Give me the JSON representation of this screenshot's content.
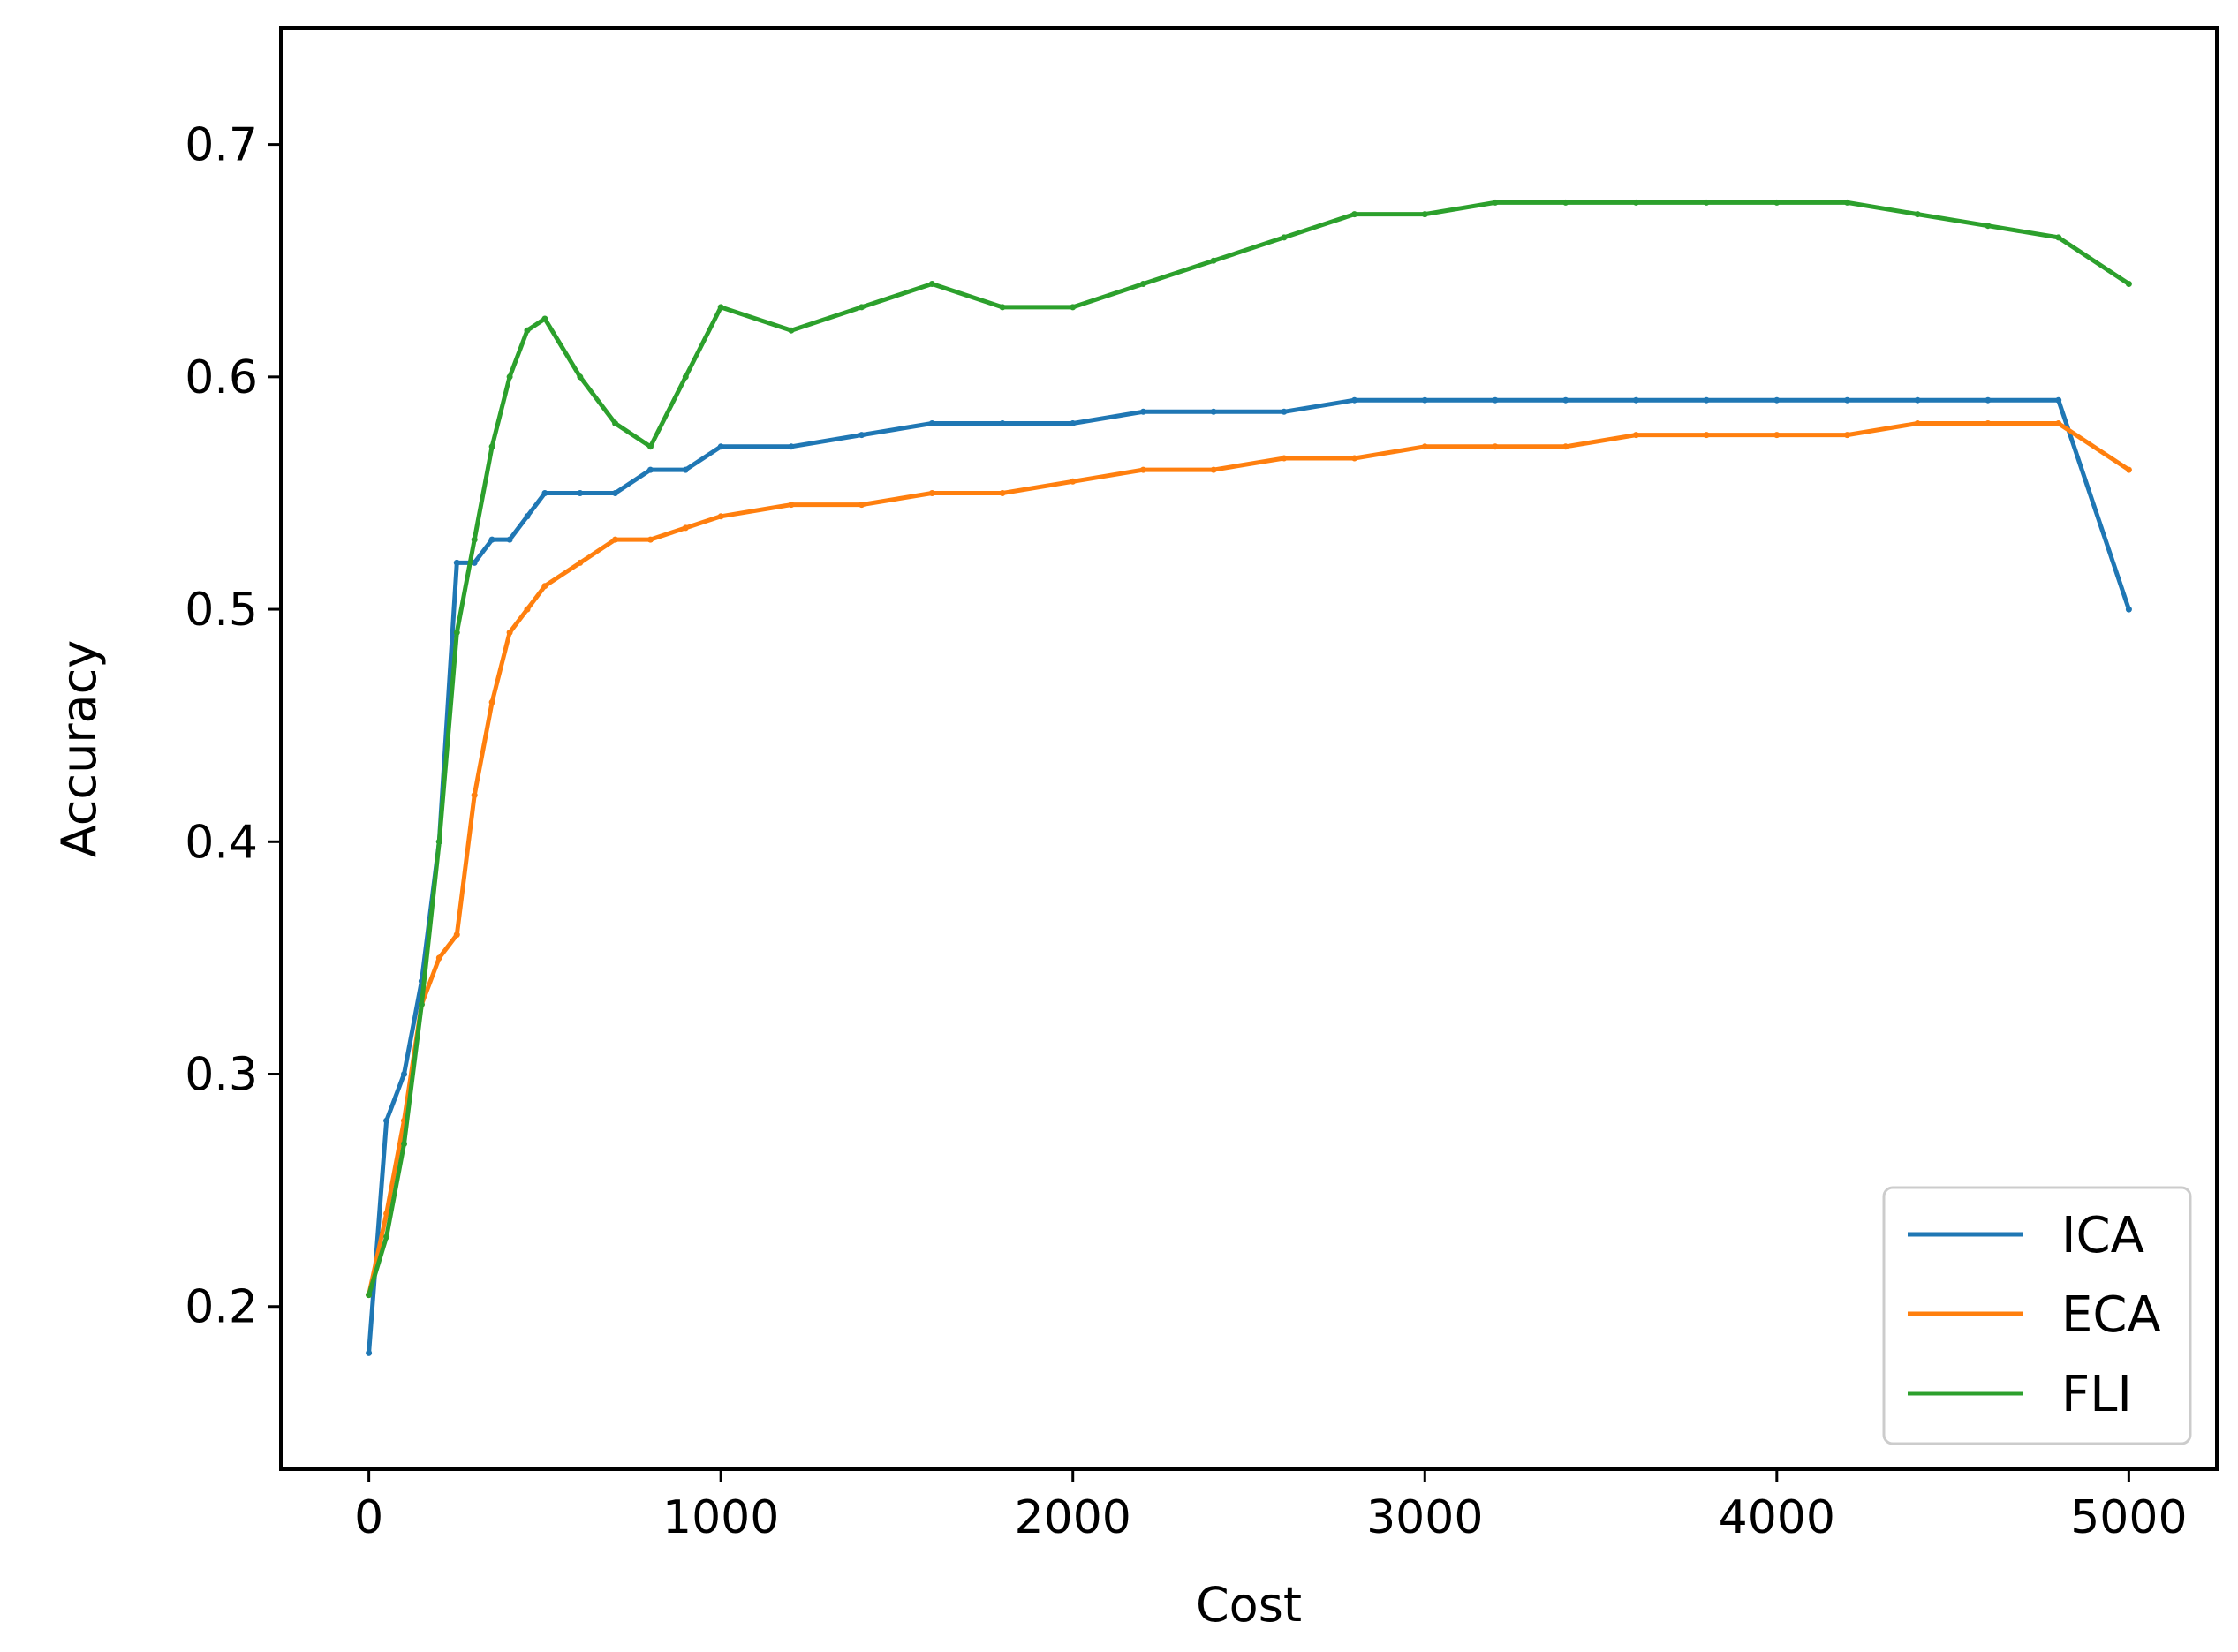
{
  "chart_data": {
    "type": "line",
    "title": "",
    "xlabel": "Cost",
    "ylabel": "Accuracy",
    "xlim": [
      -250,
      5250
    ],
    "ylim": [
      0.13,
      0.75
    ],
    "x_ticks": [
      0,
      1000,
      2000,
      3000,
      4000,
      5000
    ],
    "x_tick_labels": [
      "0",
      "1000",
      "2000",
      "3000",
      "4000",
      "5000"
    ],
    "y_ticks": [
      0.2,
      0.3,
      0.4,
      0.5,
      0.6,
      0.7
    ],
    "y_tick_labels": [
      "0.2",
      "0.3",
      "0.4",
      "0.5",
      "0.6",
      "0.7"
    ],
    "grid": false,
    "legend_position": "lower-right",
    "colors": {
      "ICA": "#1f77b4",
      "ECA": "#ff7f0e",
      "FLI": "#2ca02c"
    },
    "x": [
      0,
      50,
      100,
      150,
      200,
      250,
      300,
      350,
      400,
      450,
      500,
      600,
      700,
      800,
      900,
      1000,
      1200,
      1400,
      1600,
      1800,
      2000,
      2200,
      2400,
      2600,
      2800,
      3000,
      3200,
      3400,
      3600,
      3800,
      4000,
      4200,
      4400,
      4600,
      4800,
      5000
    ],
    "series": [
      {
        "name": "ICA",
        "values": [
          0.18,
          0.28,
          0.3,
          0.34,
          0.4,
          0.52,
          0.52,
          0.53,
          0.53,
          0.54,
          0.55,
          0.55,
          0.55,
          0.56,
          0.56,
          0.57,
          0.57,
          0.575,
          0.58,
          0.58,
          0.58,
          0.585,
          0.585,
          0.585,
          0.59,
          0.59,
          0.59,
          0.59,
          0.59,
          0.59,
          0.59,
          0.59,
          0.59,
          0.59,
          0.59,
          0.5
        ]
      },
      {
        "name": "ECA",
        "values": [
          0.205,
          0.24,
          0.28,
          0.33,
          0.35,
          0.36,
          0.42,
          0.46,
          0.49,
          0.5,
          0.51,
          0.52,
          0.53,
          0.53,
          0.535,
          0.54,
          0.545,
          0.545,
          0.55,
          0.55,
          0.555,
          0.56,
          0.56,
          0.565,
          0.565,
          0.57,
          0.57,
          0.57,
          0.575,
          0.575,
          0.575,
          0.575,
          0.58,
          0.58,
          0.58,
          0.56
        ]
      },
      {
        "name": "FLI",
        "values": [
          0.205,
          0.23,
          0.27,
          0.33,
          0.4,
          0.49,
          0.53,
          0.57,
          0.6,
          0.62,
          0.625,
          0.6,
          0.58,
          0.57,
          0.6,
          0.63,
          0.62,
          0.63,
          0.64,
          0.63,
          0.63,
          0.64,
          0.65,
          0.66,
          0.67,
          0.67,
          0.675,
          0.675,
          0.675,
          0.675,
          0.675,
          0.675,
          0.67,
          0.665,
          0.66,
          0.64
        ]
      }
    ]
  }
}
